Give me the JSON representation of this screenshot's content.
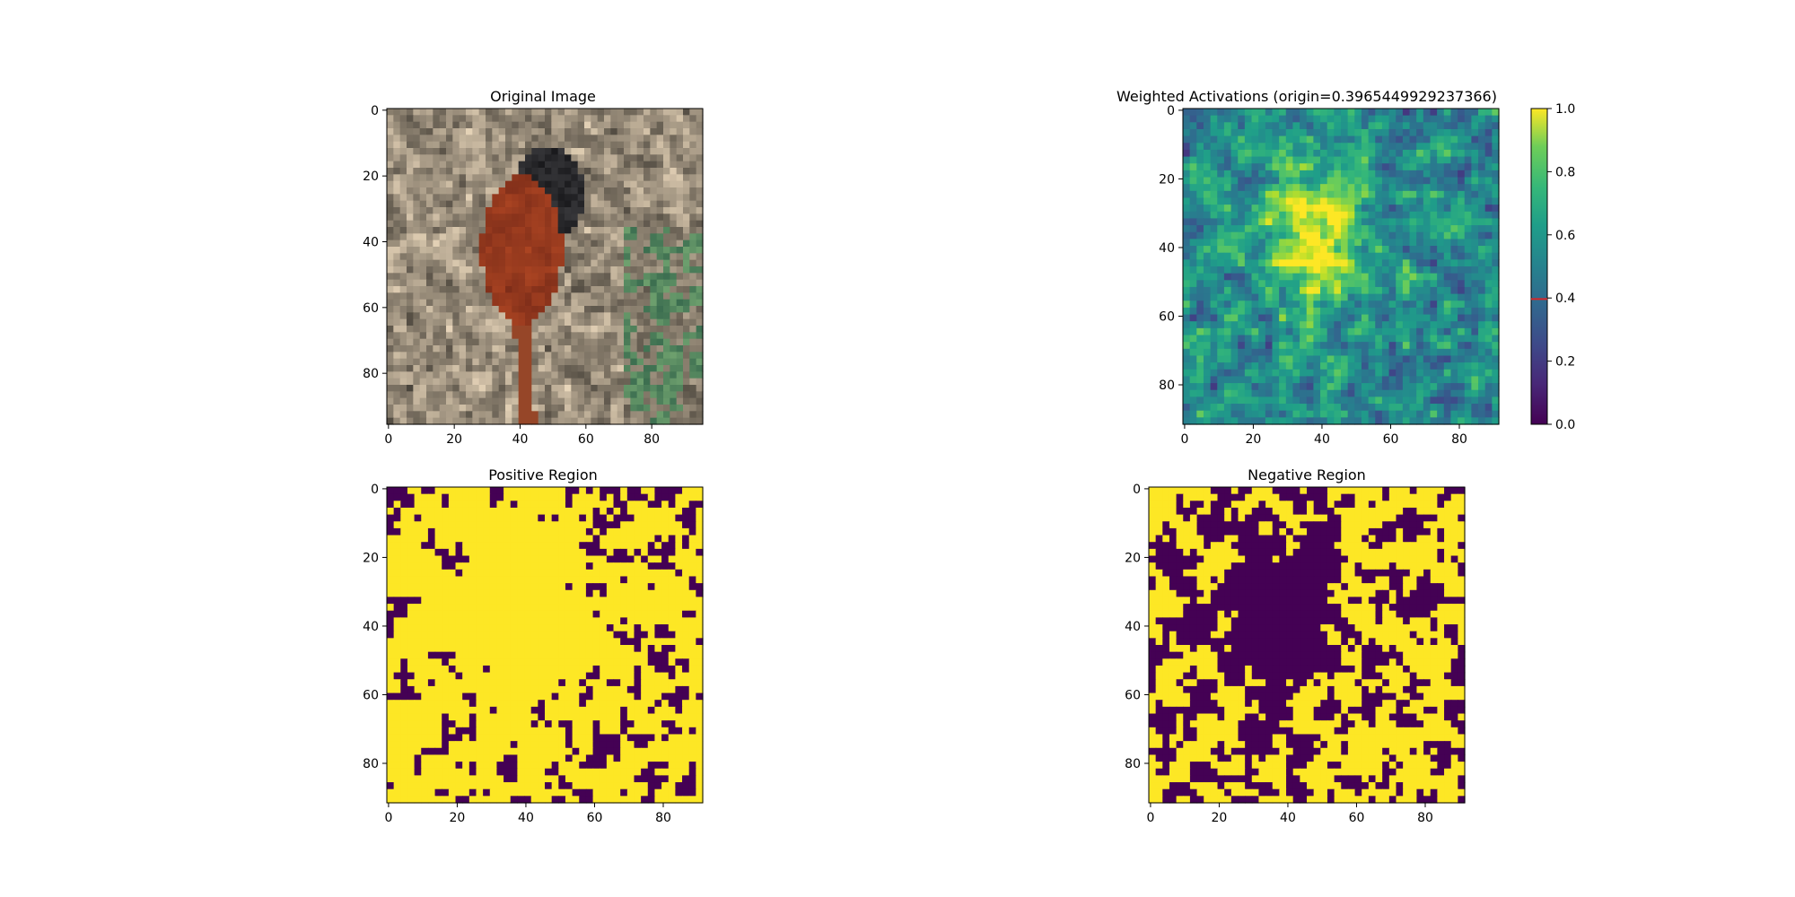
{
  "chart_data": [
    {
      "type": "heatmap",
      "title": "Original Image",
      "content": "RGB photograph of a red-brown and black monkey among foliage",
      "image_size": [
        96,
        96
      ],
      "x_ticks": [
        "0",
        "20",
        "40",
        "60",
        "80"
      ],
      "y_ticks": [
        "0",
        "20",
        "40",
        "60",
        "80"
      ],
      "xlim": [
        -0.5,
        95.5
      ],
      "ylim": [
        95.5,
        -0.5
      ]
    },
    {
      "type": "heatmap",
      "title": "Weighted Activations (origin=0.3965449929237366)",
      "colormap": "viridis",
      "image_size": [
        92,
        92
      ],
      "x_ticks": [
        "0",
        "20",
        "40",
        "60",
        "80"
      ],
      "y_ticks": [
        "0",
        "20",
        "40",
        "60",
        "80"
      ],
      "xlim": [
        -0.5,
        91.5
      ],
      "ylim": [
        91.5,
        -0.5
      ],
      "colorbar": {
        "range": [
          0.0,
          1.0
        ],
        "ticks": [
          "0.0",
          "0.2",
          "0.4",
          "0.6",
          "0.8",
          "1.0"
        ],
        "origin_marker": 0.3965449929237366,
        "marker_color": "#d62728"
      }
    },
    {
      "type": "heatmap",
      "title": "Positive Region",
      "colormap": "binary viridis",
      "image_size": [
        92,
        92
      ],
      "x_ticks": [
        "0",
        "20",
        "40",
        "60",
        "80"
      ],
      "y_ticks": [
        "0",
        "20",
        "40",
        "60",
        "80"
      ],
      "xlim": [
        -0.5,
        91.5
      ],
      "ylim": [
        91.5,
        -0.5
      ]
    },
    {
      "type": "heatmap",
      "title": "Negative Region",
      "colormap": "binary viridis",
      "image_size": [
        92,
        92
      ],
      "x_ticks": [
        "0",
        "20",
        "40",
        "60",
        "80"
      ],
      "y_ticks": [
        "0",
        "20",
        "40",
        "60",
        "80"
      ],
      "xlim": [
        -0.5,
        91.5
      ],
      "ylim": [
        91.5,
        -0.5
      ]
    }
  ],
  "colors": {
    "viridis_low": "#440154",
    "viridis_high": "#fde725",
    "axis": "#000000"
  }
}
